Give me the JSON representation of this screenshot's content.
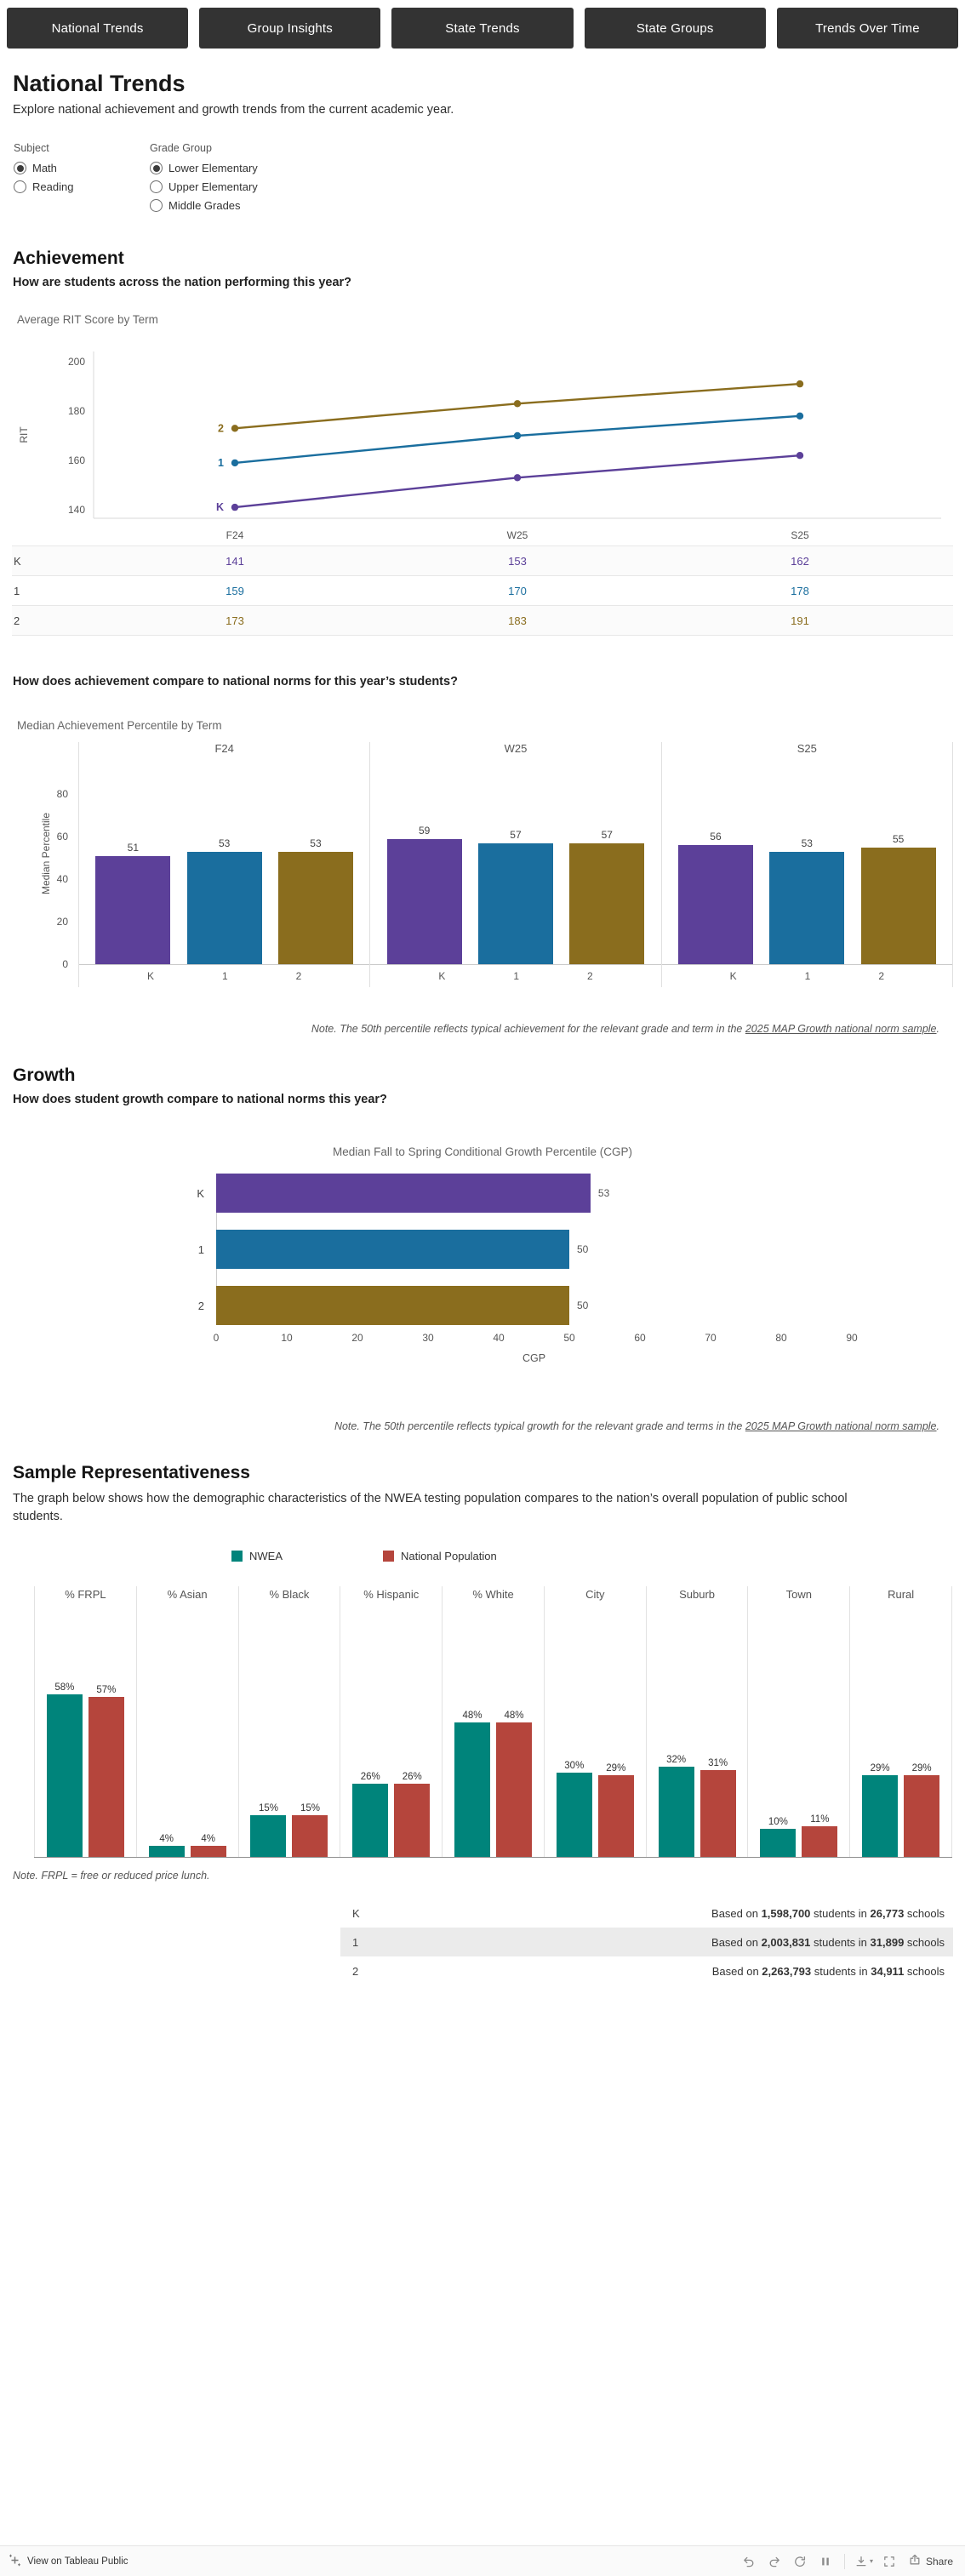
{
  "colors": {
    "purple": "#5c4099",
    "blue": "#1a6e9e",
    "gold": "#8a6d1e",
    "teal": "#00847b",
    "red": "#b5453c"
  },
  "nav": {
    "tabs": [
      {
        "label": "National Trends"
      },
      {
        "label": "Group Insights"
      },
      {
        "label": "State Trends"
      },
      {
        "label": "State Groups"
      },
      {
        "label": "Trends Over Time"
      }
    ]
  },
  "header": {
    "title": "National Trends",
    "subtitle": "Explore national achievement and growth trends from the current academic year."
  },
  "filters": {
    "subject": {
      "label": "Subject",
      "options": [
        {
          "label": "Math",
          "selected": true
        },
        {
          "label": "Reading",
          "selected": false
        }
      ]
    },
    "grade_group": {
      "label": "Grade Group",
      "options": [
        {
          "label": "Lower Elementary",
          "selected": true
        },
        {
          "label": "Upper Elementary",
          "selected": false
        },
        {
          "label": "Middle Grades",
          "selected": false
        }
      ]
    }
  },
  "achievement": {
    "heading": "Achievement",
    "question": "How are students across the nation performing this year?",
    "norms_question": "How does achievement compare to national norms for this year’s students?",
    "note": {
      "prefix": "Note. The 50th percentile reflects typical achievement for the relevant grade and term in the ",
      "link": "2025 MAP Growth national norm sample",
      "suffix": "."
    }
  },
  "growth": {
    "heading": "Growth",
    "question": "How does student growth compare to national norms this year?",
    "note": {
      "prefix": "Note. The 50th percentile reflects typical growth for the relevant grade and terms in the ",
      "link": "2025 MAP Growth national norm sample",
      "suffix": "."
    }
  },
  "sample": {
    "heading": "Sample Representativeness",
    "description": "The graph below shows how the demographic characteristics of the NWEA testing population compares to the nation’s overall population of public school students.",
    "legend": [
      {
        "label": "NWEA",
        "color": "#00847b"
      },
      {
        "label": "National Population",
        "color": "#b5453c"
      }
    ],
    "note": "Note. FRPL = free or reduced price lunch.",
    "size_table": [
      {
        "grade": "K",
        "prefix": "Based on ",
        "students": "1,598,700",
        "mid": " students in ",
        "schools": "26,773",
        "suffix": " schools"
      },
      {
        "grade": "1",
        "prefix": "Based on ",
        "students": "2,003,831",
        "mid": " students in ",
        "schools": "31,899",
        "suffix": " schools"
      },
      {
        "grade": "2",
        "prefix": "Based on ",
        "students": "2,263,793",
        "mid": " students in ",
        "schools": "34,911",
        "suffix": " schools"
      }
    ]
  },
  "footer": {
    "view_label": "View on Tableau Public",
    "share_label": "Share"
  },
  "chart_data": [
    {
      "id": "average-rit-by-term",
      "type": "line",
      "title": "Average RIT Score by Term",
      "x": [
        "F24",
        "W25",
        "S25"
      ],
      "ylabel": "RIT",
      "yticks": [
        140,
        160,
        180,
        200
      ],
      "ylim": [
        130,
        210
      ],
      "series": [
        {
          "name": "K",
          "color": "#5c4099",
          "values": [
            141,
            153,
            162
          ]
        },
        {
          "name": "1",
          "color": "#1a6e9e",
          "values": [
            159,
            170,
            178
          ]
        },
        {
          "name": "2",
          "color": "#8a6d1e",
          "values": [
            173,
            183,
            191
          ]
        }
      ]
    },
    {
      "id": "median-achievement-percentile",
      "type": "bar",
      "title": "Median Achievement Percentile by Term",
      "panels": [
        "F24",
        "W25",
        "S25"
      ],
      "categories": [
        "K",
        "1",
        "2"
      ],
      "colors": [
        "#5c4099",
        "#1a6e9e",
        "#8a6d1e"
      ],
      "ylabel": "Median Percentile",
      "yticks": [
        0,
        20,
        40,
        60,
        80
      ],
      "ylim": [
        0,
        90
      ],
      "values": {
        "F24": [
          51,
          53,
          53
        ],
        "W25": [
          59,
          57,
          57
        ],
        "S25": [
          56,
          53,
          55
        ]
      }
    },
    {
      "id": "median-cgp",
      "type": "bar-horizontal",
      "title": "Median Fall to Spring Conditional Growth Percentile (CGP)",
      "categories": [
        "K",
        "1",
        "2"
      ],
      "values": [
        53,
        50,
        50
      ],
      "colors": [
        "#5c4099",
        "#1a6e9e",
        "#8a6d1e"
      ],
      "xlabel": "CGP",
      "xticks": [
        0,
        10,
        20,
        30,
        40,
        50,
        60,
        70,
        80,
        90
      ],
      "xlim": [
        0,
        95
      ]
    },
    {
      "id": "sample-representativeness",
      "type": "grouped-bar",
      "categories": [
        "% FRPL",
        "% Asian",
        "% Black",
        "% Hispanic",
        "% White",
        "City",
        "Suburb",
        "Town",
        "Rural"
      ],
      "series": [
        {
          "name": "NWEA",
          "color": "#00847b",
          "values": [
            58,
            4,
            15,
            26,
            48,
            30,
            32,
            10,
            29
          ]
        },
        {
          "name": "National Population",
          "color": "#b5453c",
          "values": [
            57,
            4,
            15,
            26,
            48,
            29,
            31,
            11,
            29
          ]
        }
      ],
      "value_suffix": "%",
      "ylim": [
        0,
        60
      ]
    }
  ]
}
